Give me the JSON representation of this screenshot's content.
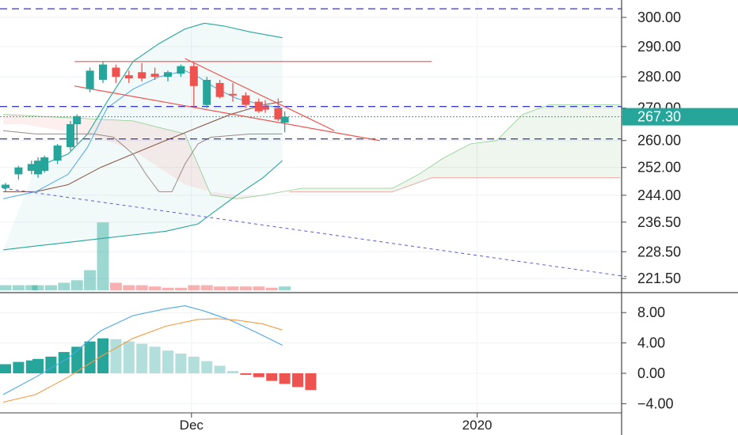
{
  "chart_data": [
    {
      "type": "candlestick",
      "panel": "price",
      "y_scale": "log",
      "ylim": [
        219.5,
        305
      ],
      "y_ticks": [
        221.5,
        228.5,
        236.5,
        244,
        252,
        260,
        270,
        280,
        290,
        300
      ],
      "y_tick_labels": [
        "221.50",
        "228.50",
        "236.50",
        "244.00",
        "252.00",
        "260.00",
        "270.00",
        "280.00",
        "290.00",
        "300.00"
      ],
      "x_ticks": [
        {
          "label": "Dec",
          "bar": 29
        },
        {
          "label": "2020",
          "bar": 73
        }
      ],
      "x_range_bars": [
        -0.3,
        96
      ],
      "current_price": {
        "label": "267.30",
        "value": 267.3,
        "color": "#26a69a"
      },
      "colors": {
        "up": "#26a69a",
        "down": "#ef5350",
        "hline": "#3333cc",
        "trend": "#ef5350",
        "bb_upper": "#26a69a",
        "bb_basis": "#8d5a4c",
        "fast_ma": "#4aa8e8",
        "lagging": "#9a8a86"
      },
      "candles": [
        {
          "x": 0,
          "o": 246,
          "h": 247.5,
          "l": 245,
          "c": 247
        },
        {
          "x": 2,
          "o": 250,
          "h": 252.5,
          "l": 248.5,
          "c": 252
        },
        {
          "x": 4,
          "o": 251,
          "h": 254,
          "l": 250,
          "c": 253
        },
        {
          "x": 5,
          "o": 250,
          "h": 255,
          "l": 249,
          "c": 254
        },
        {
          "x": 6,
          "o": 251,
          "h": 255.5,
          "l": 250.5,
          "c": 255
        },
        {
          "x": 8,
          "o": 254,
          "h": 259,
          "l": 253,
          "c": 258.5
        },
        {
          "x": 10,
          "o": 258,
          "h": 266,
          "l": 257,
          "c": 265
        },
        {
          "x": 11,
          "o": 265,
          "h": 268,
          "l": 259,
          "c": 267.5
        },
        {
          "x": 13,
          "o": 276,
          "h": 283,
          "l": 275,
          "c": 282
        },
        {
          "x": 15,
          "o": 279,
          "h": 285,
          "l": 278,
          "c": 284
        },
        {
          "x": 17,
          "o": 283,
          "h": 284,
          "l": 278,
          "c": 280
        },
        {
          "x": 19,
          "o": 280.5,
          "h": 282,
          "l": 278,
          "c": 279.5
        },
        {
          "x": 21,
          "o": 281.5,
          "h": 284.5,
          "l": 278.5,
          "c": 279.5
        },
        {
          "x": 23,
          "o": 281,
          "h": 283,
          "l": 279,
          "c": 280
        },
        {
          "x": 25,
          "o": 280,
          "h": 282,
          "l": 278.5,
          "c": 281.5
        },
        {
          "x": 27,
          "o": 281,
          "h": 284,
          "l": 280,
          "c": 283.5
        },
        {
          "x": 29,
          "o": 283.5,
          "h": 284.5,
          "l": 270,
          "c": 277
        },
        {
          "x": 31,
          "o": 271,
          "h": 280,
          "l": 270,
          "c": 279
        },
        {
          "x": 33,
          "o": 278,
          "h": 279,
          "l": 273,
          "c": 273.5
        },
        {
          "x": 35,
          "o": 274.5,
          "h": 278,
          "l": 272,
          "c": 274
        },
        {
          "x": 37,
          "o": 274,
          "h": 275,
          "l": 270,
          "c": 271
        },
        {
          "x": 39,
          "o": 272,
          "h": 273,
          "l": 268.5,
          "c": 269
        },
        {
          "x": 40,
          "o": 270.5,
          "h": 272.5,
          "l": 268.5,
          "c": 269.5
        },
        {
          "x": 42,
          "o": 270,
          "h": 273,
          "l": 266,
          "c": 266.5
        },
        {
          "x": 43,
          "o": 265.5,
          "h": 269,
          "l": 262.5,
          "c": 267.3
        }
      ],
      "volume": {
        "ylim": [
          0,
          28
        ],
        "values": [
          2,
          0,
          2,
          0,
          2,
          2,
          0,
          2,
          0,
          3,
          0,
          4,
          0,
          8,
          0,
          27,
          0,
          3,
          0,
          2,
          0,
          2,
          0,
          1.5,
          0,
          1,
          0,
          1,
          0,
          2,
          0,
          2,
          0,
          1.5,
          0,
          1.5,
          0,
          1.5,
          0,
          1.5,
          0,
          1,
          0,
          1.5
        ],
        "colors": [
          "up",
          "up",
          "up",
          "up",
          "up",
          "up",
          "up",
          "up",
          "up",
          "up",
          "up",
          "up",
          "up",
          "up",
          "up",
          "up",
          "up",
          "down",
          "down",
          "down",
          "down",
          "down",
          "down",
          "down",
          "down",
          "down",
          "down",
          "down",
          "down",
          "down",
          "down",
          "down",
          "down",
          "down",
          "down",
          "down",
          "down",
          "down",
          "down",
          "down",
          "down",
          "down",
          "down",
          "up"
        ]
      },
      "bollinger_upper": [
        [
          5,
          252
        ],
        [
          10,
          256
        ],
        [
          13,
          262
        ],
        [
          16,
          272
        ],
        [
          20,
          285
        ],
        [
          24,
          291
        ],
        [
          28,
          296
        ],
        [
          31,
          298
        ],
        [
          34,
          297
        ],
        [
          38,
          295
        ],
        [
          43,
          293
        ]
      ],
      "bollinger_basis": [
        [
          0,
          245
        ],
        [
          5,
          245
        ],
        [
          10,
          247
        ],
        [
          15,
          252
        ],
        [
          20,
          256
        ],
        [
          25,
          260
        ],
        [
          30,
          264
        ],
        [
          35,
          268
        ],
        [
          40,
          271
        ],
        [
          43,
          272
        ]
      ],
      "bollinger_lower": [
        [
          0,
          229
        ],
        [
          5,
          230
        ],
        [
          10,
          231
        ],
        [
          15,
          232
        ],
        [
          20,
          233
        ],
        [
          25,
          234
        ],
        [
          30,
          236
        ],
        [
          33,
          240
        ],
        [
          36,
          244
        ],
        [
          40,
          249
        ],
        [
          43,
          254
        ]
      ],
      "fast_ma": [
        [
          0,
          243
        ],
        [
          5,
          245
        ],
        [
          10,
          250
        ],
        [
          13,
          258
        ],
        [
          16,
          270
        ],
        [
          20,
          276
        ],
        [
          24,
          280
        ],
        [
          28,
          282
        ],
        [
          30,
          280
        ],
        [
          33,
          276
        ],
        [
          36,
          273
        ],
        [
          40,
          271
        ],
        [
          43,
          270
        ]
      ],
      "lagging_line": [
        [
          0,
          263
        ],
        [
          5,
          262
        ],
        [
          10,
          262
        ],
        [
          14,
          262
        ],
        [
          17,
          261
        ],
        [
          20,
          256
        ],
        [
          22,
          250
        ],
        [
          24,
          245
        ],
        [
          26,
          245
        ],
        [
          28,
          253
        ],
        [
          30,
          259
        ],
        [
          32,
          261
        ],
        [
          38,
          262
        ],
        [
          43,
          262
        ]
      ],
      "cloud_red": [
        [
          0,
          265
        ],
        [
          3,
          265
        ],
        [
          6,
          264
        ],
        [
          9,
          263
        ],
        [
          12,
          262
        ],
        [
          16,
          260
        ],
        [
          20,
          257
        ],
        [
          24,
          252
        ],
        [
          28,
          247
        ],
        [
          32,
          245
        ],
        [
          36,
          244
        ],
        [
          40,
          244
        ],
        [
          44,
          245
        ]
      ],
      "cloud_span_a": [
        [
          0,
          268
        ],
        [
          10,
          267
        ],
        [
          20,
          266
        ],
        [
          28,
          262
        ],
        [
          32,
          244
        ],
        [
          36,
          243
        ],
        [
          40,
          244
        ],
        [
          46,
          246
        ],
        [
          60,
          246
        ],
        [
          64,
          250
        ],
        [
          68,
          255
        ],
        [
          72,
          259
        ],
        [
          76,
          260
        ],
        [
          80,
          268
        ],
        [
          84,
          271
        ],
        [
          95,
          271
        ]
      ],
      "cloud_span_b": [
        [
          44,
          245
        ],
        [
          50,
          245
        ],
        [
          60,
          245
        ],
        [
          66,
          249
        ],
        [
          70,
          249
        ],
        [
          95,
          249
        ]
      ],
      "horizontal_levels": [
        303,
        270.5,
        260.5
      ],
      "resistance_line": {
        "y": 285,
        "x": [
          11,
          66
        ]
      },
      "channel_upper": [
        [
          28,
          286
        ],
        [
          51,
          263
        ]
      ],
      "channel_lower": [
        [
          11,
          277
        ],
        [
          58,
          260
        ]
      ],
      "long_trend": [
        [
          0,
          246
        ],
        [
          96,
          222
        ]
      ]
    },
    {
      "type": "histogram_macd",
      "panel": "oscillator",
      "ylim": [
        -5,
        10
      ],
      "y_ticks": [
        -4,
        0,
        4,
        8
      ],
      "y_tick_labels": [
        "−4.00",
        "0.00",
        "4.00",
        "8.00"
      ],
      "histogram": [
        1.2,
        1.5,
        1.7,
        1.9,
        2.2,
        2.8,
        3.5,
        4.2,
        4.6,
        4.5,
        4.2,
        3.9,
        3.5,
        3.0,
        2.6,
        2.2,
        1.6,
        1.0,
        0.3,
        -0.2,
        -0.5,
        -1.0,
        -1.4,
        -1.8,
        -2.2
      ],
      "histogram_x": [
        0,
        2,
        4,
        5,
        7,
        9,
        11,
        13,
        15,
        17,
        19,
        21,
        23,
        25,
        27,
        29,
        31,
        33,
        35,
        37,
        39,
        41,
        43,
        45,
        47
      ],
      "macd_line": [
        [
          0,
          -2.8
        ],
        [
          5,
          -0.5
        ],
        [
          10,
          2.0
        ],
        [
          15,
          5.6
        ],
        [
          20,
          7.6
        ],
        [
          25,
          8.5
        ],
        [
          28,
          8.9
        ],
        [
          31,
          8.2
        ],
        [
          35,
          7.0
        ],
        [
          39,
          5.4
        ],
        [
          43,
          3.7
        ]
      ],
      "signal_line": [
        [
          0,
          -3.8
        ],
        [
          5,
          -2.8
        ],
        [
          10,
          -0.5
        ],
        [
          15,
          2.2
        ],
        [
          20,
          4.6
        ],
        [
          25,
          6.2
        ],
        [
          30,
          7.1
        ],
        [
          33,
          7.2
        ],
        [
          36,
          7.0
        ],
        [
          40,
          6.5
        ],
        [
          43,
          5.7
        ]
      ],
      "colors": {
        "macd": "#4aa8e8",
        "signal": "#f39c42",
        "hist_up_strong": "#26a69a",
        "hist_up_weak": "#b2dfdb",
        "hist_down": "#ef5350"
      }
    }
  ]
}
